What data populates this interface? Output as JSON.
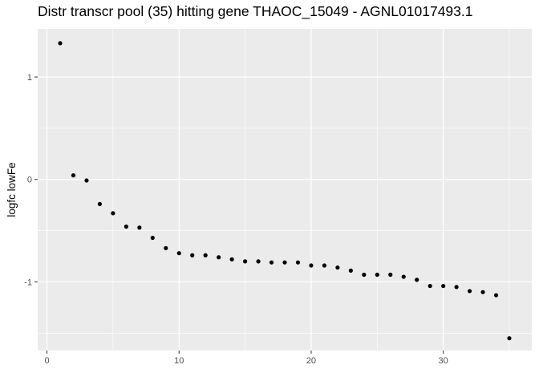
{
  "chart_data": {
    "type": "scatter",
    "title": "Distr transcr pool (35) hitting gene THAOC_15049 - AGNL01017493.1",
    "xlabel": "",
    "ylabel": "logfc lowFe",
    "xlim": [
      -0.7,
      36.7
    ],
    "ylim": [
      -1.67,
      1.47
    ],
    "x_ticks": [
      0,
      10,
      20,
      30
    ],
    "y_ticks": [
      -1,
      0,
      1
    ],
    "x_tick_labels": [
      "0",
      "10",
      "20",
      "30"
    ],
    "y_tick_labels": [
      "-1",
      "0",
      "1"
    ],
    "grid": true,
    "legend": "none",
    "panel_background": "#EBEBEB",
    "grid_color": "#FFFFFF",
    "point_color": "#000000",
    "points": [
      {
        "x": 1,
        "y": 1.33
      },
      {
        "x": 2,
        "y": 0.04
      },
      {
        "x": 3,
        "y": -0.01
      },
      {
        "x": 4,
        "y": -0.24
      },
      {
        "x": 5,
        "y": -0.33
      },
      {
        "x": 6,
        "y": -0.46
      },
      {
        "x": 7,
        "y": -0.47
      },
      {
        "x": 8,
        "y": -0.57
      },
      {
        "x": 9,
        "y": -0.67
      },
      {
        "x": 10,
        "y": -0.72
      },
      {
        "x": 11,
        "y": -0.74
      },
      {
        "x": 12,
        "y": -0.74
      },
      {
        "x": 13,
        "y": -0.76
      },
      {
        "x": 14,
        "y": -0.78
      },
      {
        "x": 15,
        "y": -0.8
      },
      {
        "x": 16,
        "y": -0.8
      },
      {
        "x": 17,
        "y": -0.81
      },
      {
        "x": 18,
        "y": -0.81
      },
      {
        "x": 19,
        "y": -0.81
      },
      {
        "x": 20,
        "y": -0.84
      },
      {
        "x": 21,
        "y": -0.84
      },
      {
        "x": 22,
        "y": -0.86
      },
      {
        "x": 23,
        "y": -0.89
      },
      {
        "x": 24,
        "y": -0.93
      },
      {
        "x": 25,
        "y": -0.93
      },
      {
        "x": 26,
        "y": -0.93
      },
      {
        "x": 27,
        "y": -0.95
      },
      {
        "x": 28,
        "y": -0.98
      },
      {
        "x": 29,
        "y": -1.04
      },
      {
        "x": 30,
        "y": -1.04
      },
      {
        "x": 31,
        "y": -1.05
      },
      {
        "x": 32,
        "y": -1.09
      },
      {
        "x": 33,
        "y": -1.1
      },
      {
        "x": 34,
        "y": -1.13
      },
      {
        "x": 35,
        "y": -1.55
      }
    ]
  }
}
